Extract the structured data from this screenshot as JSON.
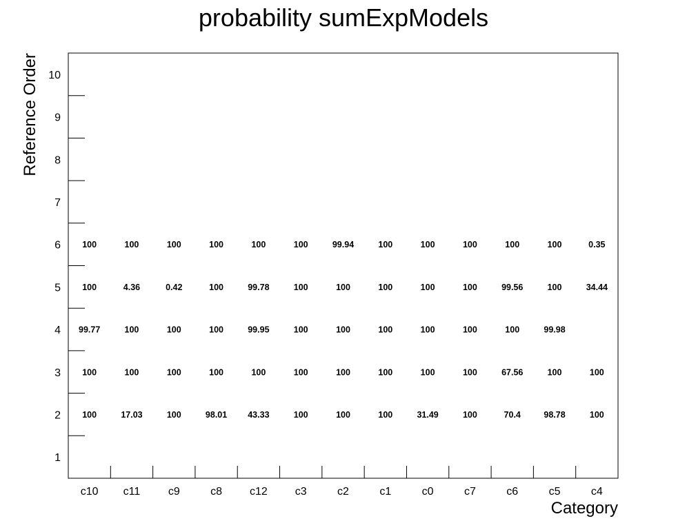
{
  "chart_data": {
    "type": "table",
    "title": "probability sumExpModels",
    "xlabel": "Category",
    "ylabel": "Reference Order",
    "categories": [
      "c10",
      "c11",
      "c9",
      "c8",
      "c12",
      "c3",
      "c2",
      "c1",
      "c0",
      "c7",
      "c6",
      "c5",
      "c4"
    ],
    "y_ticks": [
      1,
      2,
      3,
      4,
      5,
      6,
      7,
      8,
      9,
      10
    ],
    "ylim": [
      0.5,
      10.5
    ],
    "grid": false,
    "cells": [
      {
        "x": "c10",
        "y": 2,
        "value": "100"
      },
      {
        "x": "c11",
        "y": 2,
        "value": "17.03"
      },
      {
        "x": "c9",
        "y": 2,
        "value": "100"
      },
      {
        "x": "c8",
        "y": 2,
        "value": "98.01"
      },
      {
        "x": "c12",
        "y": 2,
        "value": "43.33"
      },
      {
        "x": "c3",
        "y": 2,
        "value": "100"
      },
      {
        "x": "c2",
        "y": 2,
        "value": "100"
      },
      {
        "x": "c1",
        "y": 2,
        "value": "100"
      },
      {
        "x": "c0",
        "y": 2,
        "value": "31.49"
      },
      {
        "x": "c7",
        "y": 2,
        "value": "100"
      },
      {
        "x": "c6",
        "y": 2,
        "value": "70.4"
      },
      {
        "x": "c5",
        "y": 2,
        "value": "98.78"
      },
      {
        "x": "c4",
        "y": 2,
        "value": "100"
      },
      {
        "x": "c10",
        "y": 3,
        "value": "100"
      },
      {
        "x": "c11",
        "y": 3,
        "value": "100"
      },
      {
        "x": "c9",
        "y": 3,
        "value": "100"
      },
      {
        "x": "c8",
        "y": 3,
        "value": "100"
      },
      {
        "x": "c12",
        "y": 3,
        "value": "100"
      },
      {
        "x": "c3",
        "y": 3,
        "value": "100"
      },
      {
        "x": "c2",
        "y": 3,
        "value": "100"
      },
      {
        "x": "c1",
        "y": 3,
        "value": "100"
      },
      {
        "x": "c0",
        "y": 3,
        "value": "100"
      },
      {
        "x": "c7",
        "y": 3,
        "value": "100"
      },
      {
        "x": "c6",
        "y": 3,
        "value": "67.56"
      },
      {
        "x": "c5",
        "y": 3,
        "value": "100"
      },
      {
        "x": "c4",
        "y": 3,
        "value": "100"
      },
      {
        "x": "c10",
        "y": 4,
        "value": "99.77"
      },
      {
        "x": "c11",
        "y": 4,
        "value": "100"
      },
      {
        "x": "c9",
        "y": 4,
        "value": "100"
      },
      {
        "x": "c8",
        "y": 4,
        "value": "100"
      },
      {
        "x": "c12",
        "y": 4,
        "value": "99.95"
      },
      {
        "x": "c3",
        "y": 4,
        "value": "100"
      },
      {
        "x": "c2",
        "y": 4,
        "value": "100"
      },
      {
        "x": "c1",
        "y": 4,
        "value": "100"
      },
      {
        "x": "c0",
        "y": 4,
        "value": "100"
      },
      {
        "x": "c7",
        "y": 4,
        "value": "100"
      },
      {
        "x": "c6",
        "y": 4,
        "value": "100"
      },
      {
        "x": "c5",
        "y": 4,
        "value": "99.98"
      },
      {
        "x": "c10",
        "y": 5,
        "value": "100"
      },
      {
        "x": "c11",
        "y": 5,
        "value": "4.36"
      },
      {
        "x": "c9",
        "y": 5,
        "value": "0.42"
      },
      {
        "x": "c8",
        "y": 5,
        "value": "100"
      },
      {
        "x": "c12",
        "y": 5,
        "value": "99.78"
      },
      {
        "x": "c3",
        "y": 5,
        "value": "100"
      },
      {
        "x": "c2",
        "y": 5,
        "value": "100"
      },
      {
        "x": "c1",
        "y": 5,
        "value": "100"
      },
      {
        "x": "c0",
        "y": 5,
        "value": "100"
      },
      {
        "x": "c7",
        "y": 5,
        "value": "100"
      },
      {
        "x": "c6",
        "y": 5,
        "value": "99.56"
      },
      {
        "x": "c5",
        "y": 5,
        "value": "100"
      },
      {
        "x": "c4",
        "y": 5,
        "value": "34.44"
      },
      {
        "x": "c10",
        "y": 6,
        "value": "100"
      },
      {
        "x": "c11",
        "y": 6,
        "value": "100"
      },
      {
        "x": "c9",
        "y": 6,
        "value": "100"
      },
      {
        "x": "c8",
        "y": 6,
        "value": "100"
      },
      {
        "x": "c12",
        "y": 6,
        "value": "100"
      },
      {
        "x": "c3",
        "y": 6,
        "value": "100"
      },
      {
        "x": "c2",
        "y": 6,
        "value": "99.94"
      },
      {
        "x": "c1",
        "y": 6,
        "value": "100"
      },
      {
        "x": "c0",
        "y": 6,
        "value": "100"
      },
      {
        "x": "c7",
        "y": 6,
        "value": "100"
      },
      {
        "x": "c6",
        "y": 6,
        "value": "100"
      },
      {
        "x": "c5",
        "y": 6,
        "value": "100"
      },
      {
        "x": "c4",
        "y": 6,
        "value": "0.35"
      }
    ]
  }
}
